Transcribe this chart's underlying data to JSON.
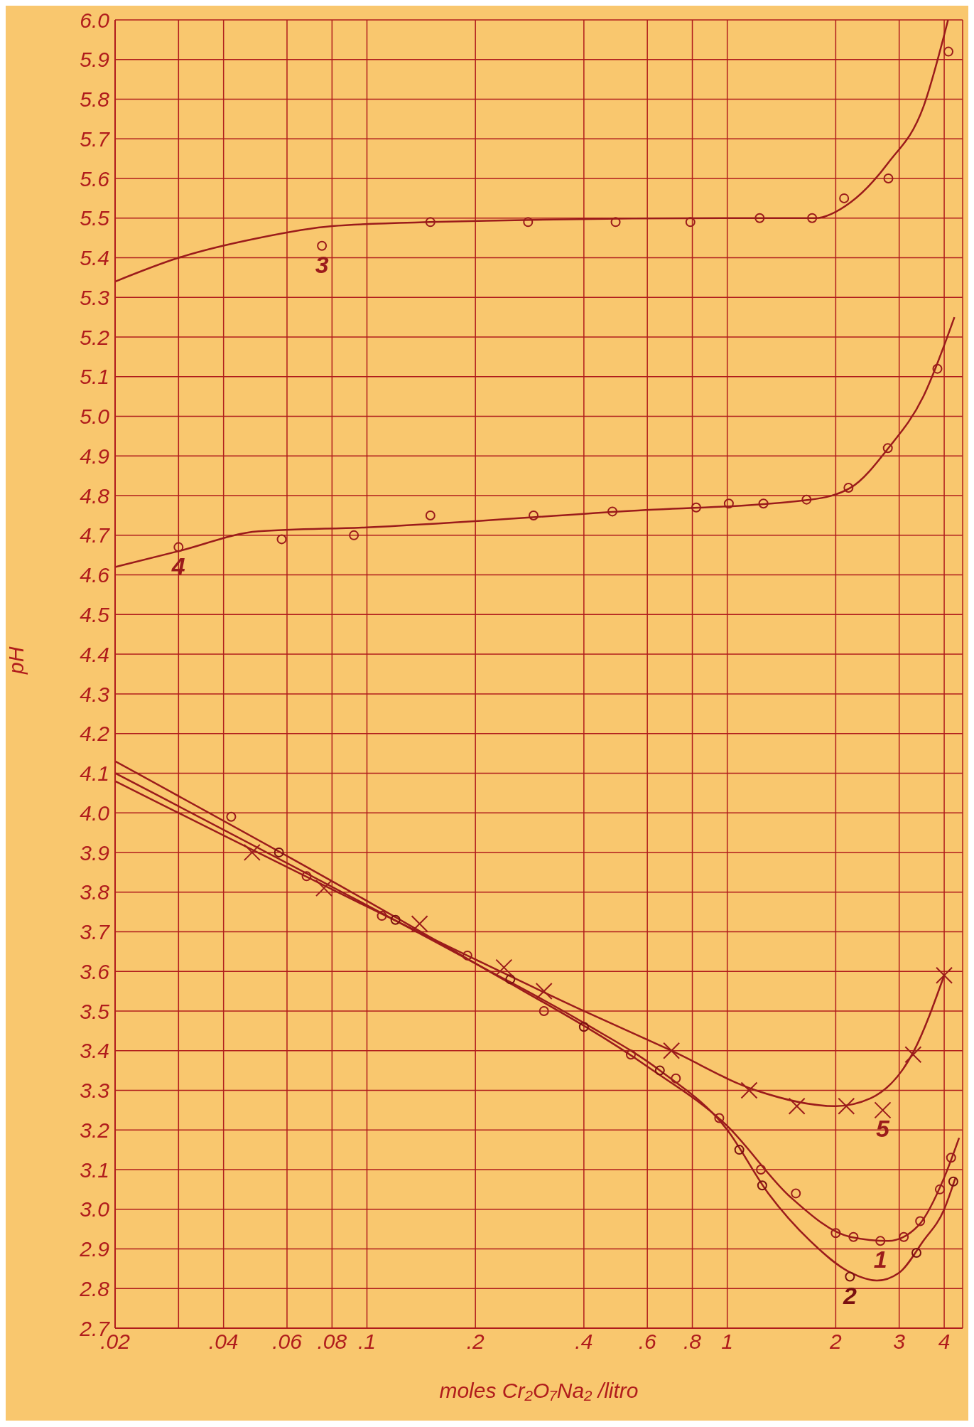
{
  "chart_data": {
    "type": "scatter",
    "xlabel": "moles Cr₂O₇Na₂ /litro",
    "ylabel": "pH",
    "log": "x",
    "grid": true,
    "xlim": [
      0.02,
      4.5
    ],
    "xticks": [
      {
        "value": 0.02,
        "label": ".02"
      },
      {
        "value": 0.03,
        "label": null
      },
      {
        "value": 0.04,
        "label": ".04"
      },
      {
        "value": 0.06,
        "label": ".06"
      },
      {
        "value": 0.08,
        "label": ".08"
      },
      {
        "value": 0.1,
        "label": ".1"
      },
      {
        "value": 0.2,
        "label": ".2"
      },
      {
        "value": 0.4,
        "label": ".4"
      },
      {
        "value": 0.6,
        "label": ".6"
      },
      {
        "value": 0.8,
        "label": ".8"
      },
      1,
      2,
      3,
      4
    ],
    "ylim": [
      2.7,
      6.0
    ],
    "yticks": [
      2.7,
      2.8,
      2.9,
      {
        "value": 3.0,
        "label": "3.0"
      },
      3.1,
      3.2,
      3.3,
      3.4,
      3.5,
      3.6,
      3.7,
      3.8,
      3.9,
      {
        "value": 4.0,
        "label": "4.0"
      },
      4.1,
      4.2,
      4.3,
      4.4,
      4.5,
      4.6,
      4.7,
      4.8,
      4.9,
      {
        "value": 5.0,
        "label": "5.0"
      },
      5.1,
      5.2,
      5.3,
      5.4,
      5.5,
      5.6,
      5.7,
      5.8,
      5.9,
      {
        "value": 6.0,
        "label": "6.0"
      }
    ],
    "series": [
      {
        "name": "3",
        "marker": "circle",
        "color": "#9b1b1b",
        "x": [
          0.075,
          0.15,
          0.28,
          0.49,
          0.79,
          1.23,
          1.72,
          2.11,
          2.8,
          4.11
        ],
        "values": [
          5.43,
          5.49,
          5.49,
          5.49,
          5.49,
          5.5,
          5.5,
          5.55,
          5.6,
          5.92
        ]
      },
      {
        "type": "line",
        "marker": "none",
        "color": "#9b1b1b",
        "x": [
          0.02,
          0.03,
          0.05,
          0.08,
          0.15,
          1,
          1.75,
          2.2,
          2.8,
          3.5,
          4.1
        ],
        "values": [
          5.34,
          5.4,
          5.45,
          5.48,
          5.49,
          5.5,
          5.5,
          5.54,
          5.64,
          5.78,
          6.0
        ]
      },
      {
        "name": "4",
        "marker": "circle",
        "color": "#9b1b1b",
        "x": [
          0.03,
          0.058,
          0.092,
          0.15,
          0.29,
          0.48,
          0.82,
          1.01,
          1.26,
          1.66,
          2.17,
          2.79,
          3.83
        ],
        "values": [
          4.67,
          4.69,
          4.7,
          4.75,
          4.75,
          4.76,
          4.77,
          4.78,
          4.78,
          4.79,
          4.82,
          4.92,
          5.12
        ]
      },
      {
        "type": "line",
        "marker": "none",
        "color": "#9b1b1b",
        "x": [
          0.02,
          0.03,
          0.05,
          0.1,
          0.5,
          1.7,
          2.2,
          2.8,
          3.5,
          4.27
        ],
        "values": [
          4.62,
          4.66,
          4.71,
          4.72,
          4.76,
          4.79,
          4.82,
          4.92,
          5.05,
          5.25
        ]
      },
      {
        "name": "1",
        "marker": "circle",
        "color": "#9b1b1b",
        "x": [
          0.042,
          0.068,
          0.11,
          0.19,
          0.31,
          0.54,
          0.72,
          0.95,
          1.24,
          1.55,
          2.0,
          2.24,
          2.66,
          3.09,
          3.43,
          3.89,
          4.18
        ],
        "values": [
          3.99,
          3.84,
          3.74,
          3.64,
          3.5,
          3.39,
          3.33,
          3.23,
          3.1,
          3.04,
          2.94,
          2.93,
          2.92,
          2.93,
          2.97,
          3.05,
          3.13
        ]
      },
      {
        "type": "line",
        "marker": "none",
        "color": "#9b1b1b",
        "x": [
          0.02,
          0.2,
          0.6,
          1,
          1.5,
          2.2,
          2.8,
          3.4,
          4.0,
          4.4
        ],
        "values": [
          4.13,
          3.62,
          3.36,
          3.21,
          3.03,
          2.93,
          2.92,
          2.96,
          3.08,
          3.18
        ]
      },
      {
        "name": "2",
        "marker": "circle",
        "color": "#7a1010",
        "x": [
          0.057,
          0.12,
          0.25,
          0.4,
          0.65,
          1.08,
          1.25,
          2.19,
          3.35,
          4.24
        ],
        "values": [
          3.9,
          3.73,
          3.58,
          3.46,
          3.35,
          3.15,
          3.06,
          2.83,
          2.89,
          3.07
        ]
      },
      {
        "type": "line",
        "marker": "none",
        "color": "#9b1b1b",
        "x": [
          0.02,
          0.2,
          0.4,
          0.65,
          1,
          1.3,
          1.7,
          2.2,
          2.6,
          3.0,
          3.5,
          4.0,
          4.3
        ],
        "values": [
          4.1,
          3.62,
          3.47,
          3.35,
          3.2,
          3.04,
          2.92,
          2.84,
          2.82,
          2.84,
          2.92,
          3.0,
          3.08
        ]
      },
      {
        "name": "5",
        "marker": "cross",
        "color": "#9b1b1b",
        "x": [
          0.048,
          0.076,
          0.14,
          0.24,
          0.31,
          0.7,
          1.15,
          1.56,
          2.14,
          2.7,
          3.28,
          4.0
        ],
        "values": [
          3.9,
          3.81,
          3.72,
          3.61,
          3.55,
          3.4,
          3.3,
          3.26,
          3.26,
          3.25,
          3.39,
          3.59
        ]
      },
      {
        "type": "line",
        "marker": "none",
        "color": "#9b1b1b",
        "x": [
          0.02,
          0.2,
          0.4,
          0.7,
          1.2,
          2,
          2.5,
          3.3,
          4.0
        ],
        "values": [
          4.08,
          3.63,
          3.5,
          3.4,
          3.3,
          3.26,
          3.28,
          3.4,
          3.59
        ]
      }
    ]
  }
}
